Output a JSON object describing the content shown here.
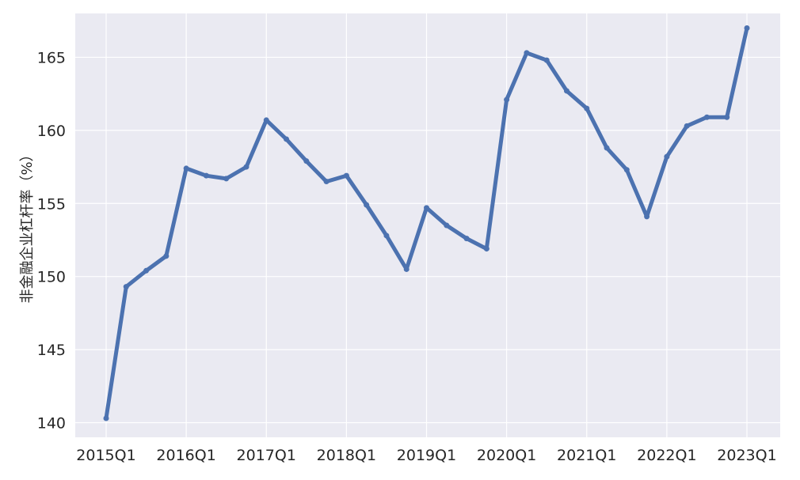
{
  "chart_data": {
    "type": "line",
    "title": "",
    "xlabel": "",
    "ylabel": "非金融企业杠杆率（%）",
    "x": [
      "2015Q1",
      "2015Q2",
      "2015Q3",
      "2015Q4",
      "2016Q1",
      "2016Q2",
      "2016Q3",
      "2016Q4",
      "2017Q1",
      "2017Q2",
      "2017Q3",
      "2017Q4",
      "2018Q1",
      "2018Q2",
      "2018Q3",
      "2018Q4",
      "2019Q1",
      "2019Q2",
      "2019Q3",
      "2019Q4",
      "2020Q1",
      "2020Q2",
      "2020Q3",
      "2020Q4",
      "2021Q1",
      "2021Q2",
      "2021Q3",
      "2021Q4",
      "2022Q1",
      "2022Q2",
      "2022Q3",
      "2022Q4",
      "2023Q1"
    ],
    "x_tick_labels": [
      "2015Q1",
      "2016Q1",
      "2017Q1",
      "2018Q1",
      "2019Q1",
      "2020Q1",
      "2021Q1",
      "2022Q1",
      "2023Q1"
    ],
    "y_ticks": [
      140,
      145,
      150,
      155,
      160,
      165
    ],
    "ylim": [
      139.0,
      168.0
    ],
    "grid": true,
    "series": [
      {
        "color": "#4c72b0",
        "values": [
          140.3,
          149.3,
          150.4,
          151.4,
          157.4,
          156.9,
          156.7,
          157.5,
          160.7,
          159.4,
          157.9,
          156.5,
          156.9,
          154.9,
          152.8,
          150.5,
          154.7,
          153.5,
          152.6,
          151.9,
          162.1,
          165.3,
          164.8,
          162.7,
          161.5,
          158.8,
          157.3,
          154.1,
          158.2,
          160.3,
          160.9,
          160.9,
          167.0
        ]
      }
    ]
  },
  "colors": {
    "plot_background": "#eaeaf2",
    "grid": "#ffffff",
    "line": "#4c72b0"
  }
}
